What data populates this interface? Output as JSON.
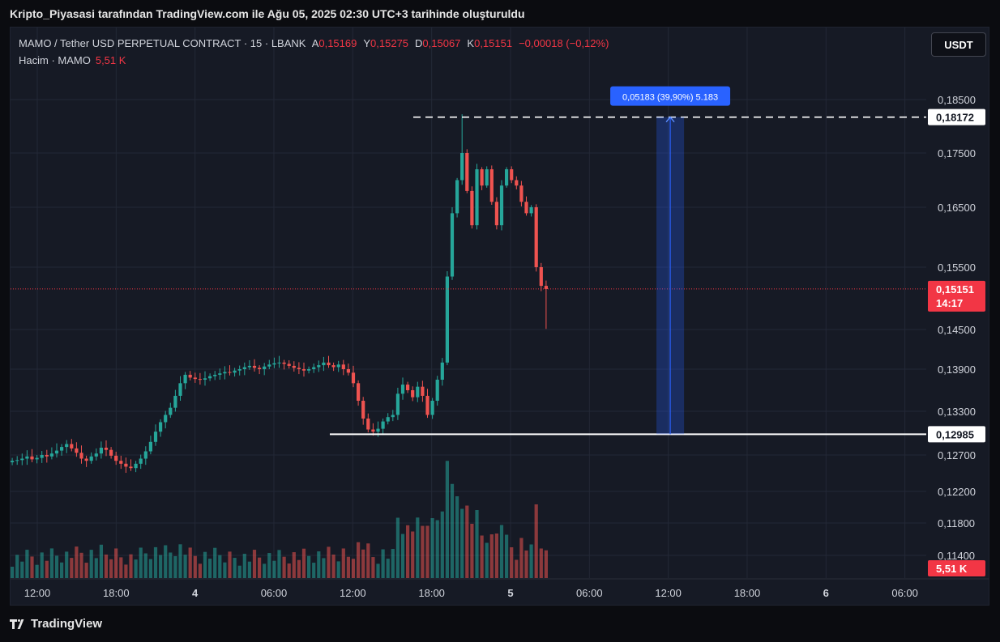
{
  "caption": "Kripto_Piyasasi tarafından TradingView.com ile Ağu 05, 2025 02:30 UTC+3 tarihinde oluşturuldu",
  "footer": {
    "brand": "TradingView",
    "icon": "tradingview-logo-icon"
  },
  "currency_button": "USDT",
  "legend": {
    "symbol": "MAMO / Tether USD PERPETUAL CONTRACT · 15 · LBANK",
    "open_label": "A",
    "open": "0,15169",
    "high_label": "Y",
    "high": "0,15275",
    "low_label": "D",
    "low": "0,15067",
    "close_label": "K",
    "close": "0,15151",
    "change": "−0,00018 (−0,12%)",
    "volume_label": "Hacim · MAMO",
    "volume": "5,51 K"
  },
  "colors": {
    "up": "#26a69a",
    "down": "#ef5350",
    "background": "#161a25",
    "grid": "#232836",
    "measure": "#2962ff"
  },
  "chart_data": {
    "type": "candlestick",
    "y_axis": {
      "ticks": [
        "0,18500",
        "0,17500",
        "0,16500",
        "0,15500",
        "0,14500",
        "0,13900",
        "0,13300",
        "0,12700",
        "0,12200",
        "0,11800",
        "0,11400"
      ],
      "tick_values": [
        0.185,
        0.175,
        0.165,
        0.155,
        0.145,
        0.139,
        0.133,
        0.127,
        0.122,
        0.118,
        0.114
      ]
    },
    "x_axis": {
      "ticks": [
        "12:00",
        "18:00",
        "4",
        "06:00",
        "12:00",
        "18:00",
        "5",
        "06:00",
        "12:00",
        "18:00",
        "6",
        "06:00"
      ],
      "tick_hours": [
        0,
        6,
        12,
        18,
        24,
        30,
        36,
        42,
        48,
        54,
        60,
        66
      ]
    },
    "price_labels": {
      "high_line": "0,18172",
      "low_line": "0,12985",
      "last_price": "0,15151",
      "countdown": "14:17",
      "volume": "5,51 K"
    },
    "levels": {
      "high": 0.18172,
      "low": 0.12985,
      "last": 0.15151
    },
    "measure": {
      "label": "0,05183 (39,90%) 5.183",
      "start_hour": 47.1,
      "end_hour": 49.2,
      "from": 0.12985,
      "to": 0.18172
    },
    "closes": [
      0.1262,
      0.1263,
      0.1265,
      0.1268,
      0.1264,
      0.1266,
      0.127,
      0.1268,
      0.1272,
      0.1276,
      0.1281,
      0.1285,
      0.1279,
      0.1273,
      0.1265,
      0.1262,
      0.1268,
      0.1272,
      0.128,
      0.1277,
      0.1269,
      0.1262,
      0.1258,
      0.1254,
      0.1252,
      0.1258,
      0.1265,
      0.1275,
      0.1288,
      0.1302,
      0.1315,
      0.1325,
      0.1335,
      0.1352,
      0.137,
      0.1382,
      0.1378,
      0.1376,
      0.1375,
      0.1377,
      0.138,
      0.1382,
      0.1384,
      0.1386,
      0.1385,
      0.1388,
      0.139,
      0.1393,
      0.1395,
      0.1392,
      0.139,
      0.1394,
      0.1397,
      0.1399,
      0.14,
      0.1398,
      0.1395,
      0.1392,
      0.139,
      0.1388,
      0.139,
      0.1393,
      0.1396,
      0.14,
      0.1396,
      0.1393,
      0.1397,
      0.139,
      0.1385,
      0.137,
      0.1345,
      0.132,
      0.1305,
      0.1302,
      0.1306,
      0.1316,
      0.1322,
      0.1325,
      0.1355,
      0.1368,
      0.136,
      0.135,
      0.1365,
      0.1352,
      0.1325,
      0.1345,
      0.1375,
      0.14,
      0.1535,
      0.164,
      0.17,
      0.175,
      0.168,
      0.162,
      0.172,
      0.169,
      0.172,
      0.166,
      0.162,
      0.169,
      0.172,
      0.17,
      0.169,
      0.166,
      0.164,
      0.165,
      0.155,
      0.152,
      0.1515
    ]
  }
}
